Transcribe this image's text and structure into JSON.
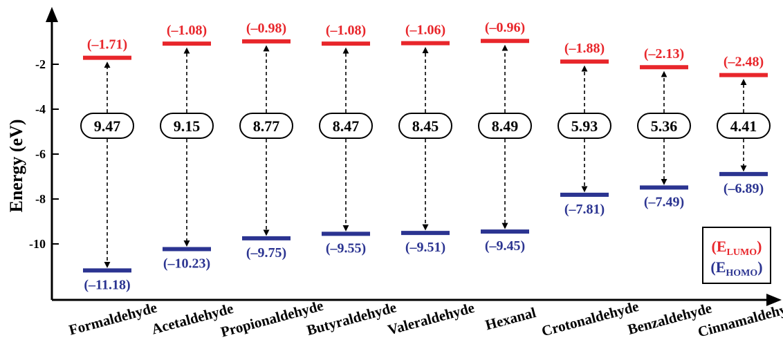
{
  "chart_data": {
    "type": "energy-level",
    "ylabel": "Energy (eV)",
    "y_ticks": [
      -2,
      -4,
      -6,
      -8,
      -10
    ],
    "y_tick_labels": [
      "-2",
      "-4",
      "-6",
      "-8",
      "-10"
    ],
    "categories": [
      "Formaldehyde",
      "Acetaldehyde",
      "Propionaldehyde",
      "Butyraldehyde",
      "Valeraldehyde",
      "Hexanal",
      "Crotonaldehyde",
      "Benzaldehyde",
      "Cinnamaldehyde"
    ],
    "series": [
      {
        "name": "E_LUMO",
        "values": [
          -1.71,
          -1.08,
          -0.98,
          -1.08,
          -1.06,
          -0.96,
          -1.88,
          -2.13,
          -2.48
        ],
        "labels": [
          "(–1.71)",
          "(–1.08)",
          "(–0.98)",
          "(–1.08)",
          "(–1.06)",
          "(–0.96)",
          "(–1.88)",
          "(–2.13)",
          "(–2.48)"
        ]
      },
      {
        "name": "E_HOMO",
        "values": [
          -11.18,
          -10.23,
          -9.75,
          -9.55,
          -9.51,
          -9.45,
          -7.81,
          -7.49,
          -6.89
        ],
        "labels": [
          "(–11.18)",
          "(–10.23)",
          "(–9.75)",
          "(–9.55)",
          "(–9.51)",
          "(–9.45)",
          "(–7.81)",
          "(–7.49)",
          "(–6.89)"
        ]
      }
    ],
    "gaps": [
      9.47,
      9.15,
      8.77,
      8.47,
      8.45,
      8.49,
      5.93,
      5.36,
      4.41
    ],
    "gap_labels": [
      "9.47",
      "9.15",
      "8.77",
      "8.47",
      "8.45",
      "8.49",
      "5.93",
      "5.36",
      "4.41"
    ],
    "legend": {
      "position": "bottom-right",
      "entries": [
        {
          "prefix": "(E",
          "sub": "LUMO",
          "suffix": ")"
        },
        {
          "prefix": "(E",
          "sub": "HOMO",
          "suffix": ")"
        }
      ]
    },
    "colors": {
      "lumo": "#e8262b",
      "homo": "#2b3491",
      "text": "#000000"
    }
  }
}
